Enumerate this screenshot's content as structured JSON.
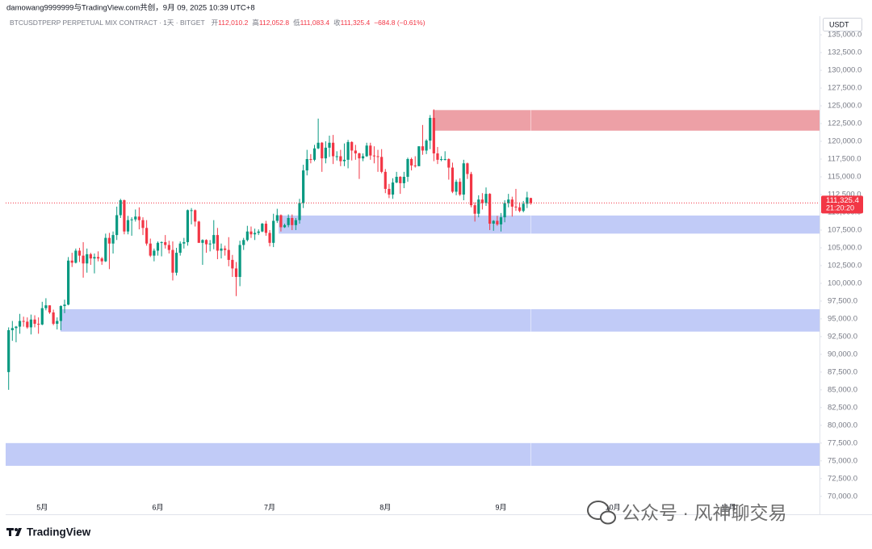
{
  "header": "damowang9999999与TradingView.com共创，9月 09, 2025 10:39 UTC+8",
  "brand": "TradingView",
  "watermark": "公众号 · 风神聊交易",
  "chart_data": {
    "type": "candlestick",
    "symbol": "BTCUSDTPERP PERPETUAL MIX CONTRACT · 1天 · BITGET",
    "ohlc_legend": [
      {
        "label": "开",
        "value": "112,010.2"
      },
      {
        "label": "高",
        "value": "112,052.8"
      },
      {
        "label": "低",
        "value": "111,083.4"
      },
      {
        "label": "收",
        "value": "111,325.4"
      }
    ],
    "change": "−684.8 (−0.61%)",
    "currency": "USDT",
    "last_price_label": "111,325.4",
    "countdown": "21:20:20",
    "up_color": "#089981",
    "down_color": "#f23645",
    "ohlc": [
      [
        87500,
        93800,
        85000,
        93400
      ],
      [
        93400,
        94700,
        91900,
        93700
      ],
      [
        93700,
        94000,
        91700,
        93900
      ],
      [
        93900,
        95700,
        92900,
        94700
      ],
      [
        94700,
        95300,
        93900,
        94600
      ],
      [
        94600,
        95200,
        93600,
        93800
      ],
      [
        93800,
        95600,
        92800,
        94900
      ],
      [
        94900,
        95500,
        93800,
        94300
      ],
      [
        94300,
        95200,
        92900,
        94200
      ],
      [
        94200,
        97400,
        94100,
        96500
      ],
      [
        96500,
        97900,
        96200,
        96900
      ],
      [
        96900,
        96900,
        95700,
        95900
      ],
      [
        95900,
        96300,
        94100,
        94300
      ],
      [
        94300,
        95200,
        93500,
        94700
      ],
      [
        94700,
        96900,
        93400,
        96800
      ],
      [
        96800,
        97700,
        95800,
        97000
      ],
      [
        97000,
        103700,
        96900,
        103200
      ],
      [
        103200,
        104300,
        102300,
        102900
      ],
      [
        102900,
        104900,
        102800,
        104600
      ],
      [
        104600,
        105000,
        103000,
        103900
      ],
      [
        103900,
        105800,
        100800,
        102800
      ],
      [
        102800,
        104900,
        101500,
        104100
      ],
      [
        104100,
        104300,
        102600,
        103500
      ],
      [
        103500,
        104200,
        101400,
        103700
      ],
      [
        103700,
        104500,
        103100,
        103500
      ],
      [
        103500,
        103700,
        102600,
        103100
      ],
      [
        103100,
        107000,
        103000,
        106400
      ],
      [
        106400,
        107100,
        102000,
        105600
      ],
      [
        105600,
        107300,
        104200,
        106800
      ],
      [
        106800,
        110800,
        106100,
        109600
      ],
      [
        109600,
        111900,
        109200,
        111700
      ],
      [
        111700,
        111800,
        106900,
        107300
      ],
      [
        107300,
        109500,
        106900,
        108900
      ],
      [
        108900,
        109300,
        106700,
        109000
      ],
      [
        109000,
        110400,
        108700,
        109400
      ],
      [
        109400,
        110700,
        107600,
        108900
      ],
      [
        108900,
        109300,
        106800,
        107800
      ],
      [
        107800,
        108900,
        105300,
        105600
      ],
      [
        105600,
        106300,
        103700,
        103900
      ],
      [
        103900,
        104900,
        103100,
        104600
      ],
      [
        104600,
        105900,
        103900,
        105700
      ],
      [
        105700,
        105900,
        103800,
        105800
      ],
      [
        105800,
        106800,
        104900,
        105400
      ],
      [
        105400,
        106000,
        104200,
        104700
      ],
      [
        104700,
        105900,
        100400,
        101500
      ],
      [
        101500,
        105000,
        101100,
        104300
      ],
      [
        104300,
        105900,
        103900,
        105600
      ],
      [
        105600,
        106400,
        104900,
        105800
      ],
      [
        105800,
        110400,
        105300,
        110300
      ],
      [
        110300,
        110600,
        108300,
        110300
      ],
      [
        110300,
        110400,
        108000,
        108700
      ],
      [
        108700,
        108800,
        105700,
        105700
      ],
      [
        105700,
        106200,
        102600,
        106100
      ],
      [
        106100,
        106200,
        104300,
        105500
      ],
      [
        105500,
        106100,
        104500,
        105600
      ],
      [
        105600,
        108900,
        104800,
        106800
      ],
      [
        106800,
        107800,
        103400,
        104600
      ],
      [
        104600,
        105600,
        103500,
        104900
      ],
      [
        104900,
        105300,
        103900,
        104700
      ],
      [
        104700,
        106500,
        102400,
        103300
      ],
      [
        103300,
        104000,
        100900,
        102100
      ],
      [
        102100,
        103000,
        98200,
        100900
      ],
      [
        100900,
        106000,
        99600,
        105400
      ],
      [
        105400,
        106400,
        104700,
        106100
      ],
      [
        106100,
        108100,
        105900,
        107300
      ],
      [
        107300,
        108000,
        106400,
        106900
      ],
      [
        106900,
        107700,
        106100,
        107100
      ],
      [
        107100,
        107600,
        106800,
        107300
      ],
      [
        107300,
        108500,
        107200,
        108400
      ],
      [
        108400,
        108800,
        106700,
        107100
      ],
      [
        107100,
        107500,
        105200,
        105700
      ],
      [
        105700,
        109800,
        105100,
        108800
      ],
      [
        108800,
        110500,
        108500,
        109600
      ],
      [
        109600,
        109700,
        107300,
        107900
      ],
      [
        107900,
        108400,
        107800,
        108200
      ],
      [
        108200,
        109700,
        107900,
        109200
      ],
      [
        109200,
        109700,
        107500,
        108200
      ],
      [
        108200,
        109200,
        107500,
        108900
      ],
      [
        108900,
        111900,
        108400,
        111300
      ],
      [
        111300,
        116700,
        110600,
        115900
      ],
      [
        115900,
        118800,
        115200,
        117500
      ],
      [
        117500,
        118200,
        116900,
        117400
      ],
      [
        117400,
        119500,
        117200,
        119000
      ],
      [
        119000,
        123200,
        118900,
        119800
      ],
      [
        119800,
        119900,
        115700,
        117600
      ],
      [
        117600,
        120000,
        116900,
        119100
      ],
      [
        119100,
        120800,
        117800,
        119800
      ],
      [
        119800,
        120900,
        116800,
        117900
      ],
      [
        117900,
        118600,
        117300,
        117900
      ],
      [
        117900,
        118800,
        116500,
        117200
      ],
      [
        117200,
        119700,
        116500,
        117400
      ],
      [
        117400,
        120200,
        116200,
        119900
      ],
      [
        119900,
        120000,
        117300,
        118700
      ],
      [
        118700,
        119500,
        117400,
        118300
      ],
      [
        118300,
        118400,
        114700,
        117600
      ],
      [
        117600,
        118300,
        117200,
        117900
      ],
      [
        117900,
        119800,
        117800,
        119400
      ],
      [
        119400,
        119800,
        117400,
        118000
      ],
      [
        118000,
        119300,
        116900,
        117900
      ],
      [
        117900,
        118800,
        115700,
        117800
      ],
      [
        117800,
        118900,
        115500,
        115700
      ],
      [
        115700,
        116100,
        112700,
        113300
      ],
      [
        113300,
        114000,
        112000,
        112500
      ],
      [
        112500,
        114800,
        111900,
        114200
      ],
      [
        114200,
        115700,
        114100,
        115000
      ],
      [
        115000,
        115100,
        112600,
        114100
      ],
      [
        114100,
        115700,
        113400,
        115000
      ],
      [
        115000,
        117700,
        114300,
        117500
      ],
      [
        117500,
        117700,
        115900,
        116600
      ],
      [
        116600,
        117900,
        116300,
        116500
      ],
      [
        116500,
        119300,
        116500,
        119300
      ],
      [
        119300,
        122300,
        118100,
        118700
      ],
      [
        118700,
        120300,
        118200,
        120100
      ],
      [
        120100,
        123700,
        118900,
        123300
      ],
      [
        123300,
        124500,
        117200,
        118300
      ],
      [
        118300,
        119200,
        116800,
        117400
      ],
      [
        117400,
        117900,
        117200,
        117500
      ],
      [
        117500,
        118600,
        117300,
        117500
      ],
      [
        117500,
        117600,
        114600,
        116300
      ],
      [
        116300,
        117000,
        112700,
        112900
      ],
      [
        112900,
        114600,
        112400,
        114300
      ],
      [
        114300,
        114800,
        112300,
        112500
      ],
      [
        112500,
        117400,
        111700,
        116900
      ],
      [
        116900,
        117000,
        114700,
        115400
      ],
      [
        115400,
        115700,
        110700,
        111000
      ],
      [
        111000,
        111400,
        108700,
        109800
      ],
      [
        109800,
        112400,
        109300,
        111800
      ],
      [
        111800,
        112700,
        110400,
        111300
      ],
      [
        111300,
        113500,
        110900,
        112600
      ],
      [
        112600,
        112700,
        107500,
        108400
      ],
      [
        108400,
        108900,
        107400,
        108800
      ],
      [
        108800,
        109500,
        108100,
        108300
      ],
      [
        108300,
        109900,
        107300,
        109300
      ],
      [
        109300,
        111700,
        108600,
        111300
      ],
      [
        111300,
        112600,
        110700,
        111800
      ],
      [
        111800,
        112200,
        109400,
        110800
      ],
      [
        110800,
        113300,
        110200,
        110700
      ],
      [
        110700,
        111400,
        110000,
        110200
      ],
      [
        110200,
        111600,
        110000,
        111200
      ],
      [
        111200,
        112900,
        110600,
        112100
      ],
      [
        112010.2,
        112052.8,
        111083.4,
        111325.4
      ]
    ],
    "xlim": [
      -0.8,
      217.4
    ],
    "xticks": [
      {
        "value": 9,
        "label": "5月"
      },
      {
        "value": 40,
        "label": "6月"
      },
      {
        "value": 70,
        "label": "7月"
      },
      {
        "value": 101,
        "label": "8月"
      },
      {
        "value": 132,
        "label": "9月"
      },
      {
        "value": 162,
        "label": "10月"
      },
      {
        "value": 193,
        "label": "11月"
      }
    ],
    "ylim": [
      67700,
      137400
    ],
    "yticks": [
      {
        "value": 135000,
        "label": "135,000.0"
      },
      {
        "value": 132500,
        "label": "132,500.0"
      },
      {
        "value": 130000,
        "label": "130,000.0"
      },
      {
        "value": 127500,
        "label": "127,500.0"
      },
      {
        "value": 125000,
        "label": "125,000.0"
      },
      {
        "value": 122500,
        "label": "122,500.0"
      },
      {
        "value": 120000,
        "label": "120,000.0"
      },
      {
        "value": 117500,
        "label": "117,500.0"
      },
      {
        "value": 115000,
        "label": "115,000.0"
      },
      {
        "value": 112500,
        "label": "112,500.0"
      },
      {
        "value": 110000,
        "label": "110,000.0"
      },
      {
        "value": 107500,
        "label": "107,500.0"
      },
      {
        "value": 105000,
        "label": "105,000.0"
      },
      {
        "value": 102500,
        "label": "102,500.0"
      },
      {
        "value": 100000,
        "label": "100,000.0"
      },
      {
        "value": 97500,
        "label": "97,500.0"
      },
      {
        "value": 95000,
        "label": "95,000.0"
      },
      {
        "value": 92500,
        "label": "92,500.0"
      },
      {
        "value": 90000,
        "label": "90,000.0"
      },
      {
        "value": 87500,
        "label": "87,500.0"
      },
      {
        "value": 85000,
        "label": "85,000.0"
      },
      {
        "value": 82500,
        "label": "82,500.0"
      },
      {
        "value": 80000,
        "label": "80,000.0"
      },
      {
        "value": 77500,
        "label": "77,500.0"
      },
      {
        "value": 75000,
        "label": "75,000.0"
      },
      {
        "value": 72500,
        "label": "72,500.0"
      },
      {
        "value": 70000,
        "label": "70,000.0"
      }
    ],
    "zones": [
      {
        "start": 113.7,
        "low": 121500,
        "high": 124400,
        "color": "#eda0a6"
      },
      {
        "start": 72.4,
        "low": 107000,
        "high": 109550,
        "color": "#c1cbf7"
      },
      {
        "start": 13.9,
        "low": 93200,
        "high": 96350,
        "color": "#c1cbf7"
      },
      {
        "start": -0.8,
        "low": 74300,
        "high": 77500,
        "color": "#c1cbf7"
      }
    ],
    "grid": false
  }
}
